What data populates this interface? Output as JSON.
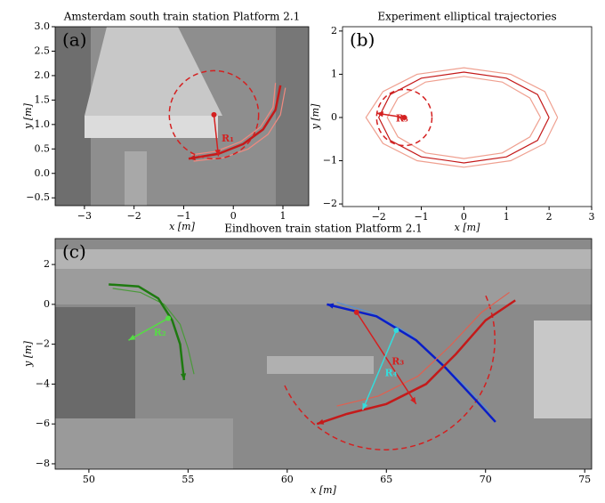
{
  "chart_data": [
    {
      "type": "line",
      "panel": "(a)",
      "title": "Amsterdam south train station Platform 2.1",
      "xlabel": "x [m]",
      "ylabel": "y [m]",
      "xlim": [
        -3.59,
        1.52
      ],
      "ylim": [
        -0.66,
        3.0
      ],
      "xticks": [
        {
          "value": -3,
          "label": "−3"
        },
        {
          "value": -2,
          "label": "−2"
        },
        {
          "value": -1,
          "label": "−1"
        },
        0,
        1
      ],
      "yticks": [
        {
          "value": -0.5,
          "label": "−0.5"
        },
        {
          "value": 0,
          "label": "0.0"
        },
        {
          "value": 0.5,
          "label": "0.5"
        },
        {
          "value": 1,
          "label": "1.0"
        },
        {
          "value": 1.5,
          "label": "1.5"
        },
        {
          "value": 2,
          "label": "2.0"
        },
        {
          "value": 2.5,
          "label": "2.5"
        },
        {
          "value": 3,
          "label": "3.0"
        }
      ],
      "series": [
        {
          "color": "#f08a80",
          "arrow": false,
          "x": [
            1.05,
            0.95,
            0.7,
            0.3,
            -0.2,
            -0.8
          ],
          "values": [
            1.75,
            1.2,
            0.8,
            0.5,
            0.32,
            0.25
          ]
        },
        {
          "color": "#f08a80",
          "arrow": false,
          "x": [
            0.85,
            0.8,
            0.55,
            0.15,
            -0.35,
            -0.85
          ],
          "values": [
            1.85,
            1.35,
            0.95,
            0.65,
            0.45,
            0.38
          ]
        },
        {
          "color": "#c41a1a",
          "arrow": true,
          "x": [
            0.95,
            0.85,
            0.6,
            0.2,
            -0.3,
            -0.9
          ],
          "values": [
            1.8,
            1.3,
            0.9,
            0.6,
            0.4,
            0.3
          ]
        }
      ],
      "circles": [
        {
          "color": "#d42020",
          "center": [
            -0.39,
            1.2
          ],
          "radius": 0.9
        }
      ],
      "vectors": [
        {
          "label": "R₁",
          "color": "#d42020",
          "from": [
            -0.39,
            1.2
          ],
          "to": [
            -0.3,
            0.35
          ]
        }
      ]
    },
    {
      "type": "line",
      "panel": "(b)",
      "title": "Experiment elliptical trajectories",
      "xlabel": "x [m]",
      "ylabel": "y [m]",
      "xlim": [
        -2.85,
        3.0
      ],
      "ylim": [
        -2.06,
        2.1
      ],
      "xticks": [
        {
          "value": -2,
          "label": "−2"
        },
        {
          "value": -1,
          "label": "−1"
        },
        0,
        1,
        2,
        3
      ],
      "yticks": [
        {
          "value": -2,
          "label": "−2"
        },
        {
          "value": -1,
          "label": "−1"
        },
        0,
        1,
        2
      ],
      "series": [
        {
          "color": "#efa090",
          "arrow": false,
          "x": [
            2.2,
            1.9,
            1.1,
            0,
            -1.1,
            -1.9,
            -2.3,
            -1.9,
            -1.1,
            0,
            1.1,
            1.9,
            2.2
          ],
          "values": [
            0,
            0.6,
            1.0,
            1.15,
            1.0,
            0.6,
            0,
            -0.6,
            -1.0,
            -1.15,
            -1.0,
            -0.6,
            0
          ]
        },
        {
          "color": "#efa090",
          "arrow": false,
          "x": [
            1.8,
            1.55,
            0.9,
            0,
            -0.9,
            -1.55,
            -1.8,
            -1.55,
            -0.9,
            0,
            0.9,
            1.55,
            1.8
          ],
          "values": [
            0,
            0.45,
            0.82,
            0.95,
            0.82,
            0.45,
            0,
            -0.45,
            -0.82,
            -0.95,
            -0.82,
            -0.45,
            0
          ]
        },
        {
          "color": "#c41a1a",
          "arrow": false,
          "x": [
            2,
            1.73,
            1,
            0,
            -1,
            -1.73,
            -2,
            -1.73,
            -1,
            0,
            1,
            1.73,
            2
          ],
          "values": [
            0,
            0.53,
            0.91,
            1.05,
            0.91,
            0.53,
            0,
            -0.53,
            -0.91,
            -1.05,
            -0.91,
            -0.53,
            0
          ]
        }
      ],
      "circles": [
        {
          "color": "#d42020",
          "center": [
            -1.4,
            0
          ],
          "radius": 0.65
        }
      ],
      "vectors": [
        {
          "label": "R₅",
          "color": "#d42020",
          "from": [
            -1.4,
            0
          ],
          "to": [
            -2.05,
            0.1
          ]
        }
      ]
    },
    {
      "type": "line",
      "panel": "(c)",
      "title": "Eindhoven train station Platform 2.1",
      "xlabel": "x [m]",
      "ylabel": "y [m]",
      "xlim": [
        48.3,
        75.35
      ],
      "ylim": [
        -8.27,
        3.3
      ],
      "xticks": [
        50,
        55,
        60,
        65,
        70,
        75
      ],
      "yticks": [
        {
          "value": -8,
          "label": "−8"
        },
        {
          "value": -6,
          "label": "−6"
        },
        {
          "value": -4,
          "label": "−4"
        },
        {
          "value": -2,
          "label": "−2"
        },
        0,
        2
      ],
      "series": [
        {
          "color": "#4a9a3a",
          "arrow": false,
          "x": [
            51.2,
            52.6,
            53.8,
            54.6,
            55.0,
            55.3
          ],
          "values": [
            0.8,
            0.6,
            0.0,
            -1.0,
            -2.2,
            -3.5
          ]
        },
        {
          "color": "#1e7a10",
          "arrow": true,
          "x": [
            51,
            52.5,
            53.5,
            54.2,
            54.6,
            54.8
          ],
          "values": [
            1.0,
            0.9,
            0.3,
            -0.8,
            -2.0,
            -3.8
          ]
        },
        {
          "color": "#5a8fd0",
          "arrow": false,
          "x": [
            70.2,
            69.2,
            67.7,
            66.2,
            64.2,
            62.5
          ],
          "values": [
            -5.4,
            -4.3,
            -2.9,
            -1.5,
            -0.4,
            0.1
          ]
        },
        {
          "color": "#0a1ec8",
          "arrow": true,
          "x": [
            70.5,
            69.5,
            68,
            66.5,
            64.5,
            62
          ],
          "values": [
            -5.9,
            -4.8,
            -3.2,
            -1.8,
            -0.6,
            0.0
          ]
        },
        {
          "color": "#e06050",
          "arrow": false,
          "x": [
            71.2,
            69.8,
            68.2,
            66.6,
            64.6,
            62.5
          ],
          "values": [
            0.6,
            -0.4,
            -2.1,
            -3.6,
            -4.6,
            -5.1
          ]
        },
        {
          "color": "#c41a1a",
          "arrow": true,
          "x": [
            71.5,
            70,
            68.5,
            67,
            65,
            63,
            61.5
          ],
          "values": [
            0.2,
            -0.8,
            -2.5,
            -4.0,
            -5.0,
            -5.5,
            -6.0
          ]
        }
      ],
      "circles": [],
      "vectors": [
        {
          "label": "R₂",
          "color": "#55dd44",
          "from": [
            54,
            -0.7
          ],
          "to": [
            52,
            -1.8
          ]
        },
        {
          "label": "R₃",
          "color": "#d42020",
          "from": [
            63.5,
            -0.4
          ],
          "to": [
            66.5,
            -5.0
          ]
        },
        {
          "label": "R₄",
          "color": "#33dddd",
          "from": [
            65.5,
            -1.3
          ],
          "to": [
            63.8,
            -5.3
          ]
        }
      ]
    }
  ]
}
